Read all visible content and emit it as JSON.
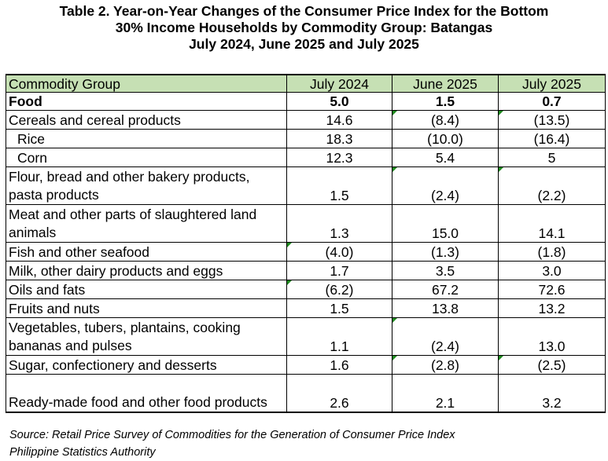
{
  "title": {
    "line1": "Table 2. Year-on-Year Changes of the Consumer Price Index for the Bottom",
    "line2": "30% Income Households by Commodity Group: Batangas",
    "line3": "July 2024, June 2025 and July 2025"
  },
  "table": {
    "headers": [
      "Commodity Group",
      "July 2024",
      "June 2025",
      "July 2025"
    ],
    "rows": [
      {
        "label": "Food",
        "v": [
          "5.0",
          "1.5",
          "0.7"
        ]
      },
      {
        "label": "Cereals and cereal products",
        "v": [
          "14.6",
          "(8.4)",
          "(13.5)"
        ]
      },
      {
        "label": "Rice",
        "v": [
          "18.3",
          "(10.0)",
          "(16.4)"
        ]
      },
      {
        "label": "Corn",
        "v": [
          "12.3",
          "5.4",
          "5"
        ]
      },
      {
        "label": "Flour, bread and other bakery products, pasta products",
        "v": [
          "1.5",
          "(2.4)",
          "(2.2)"
        ]
      },
      {
        "label": "Meat and other parts of slaughtered land animals",
        "v": [
          "1.3",
          "15.0",
          "14.1"
        ]
      },
      {
        "label": "Fish and other seafood",
        "v": [
          "(4.0)",
          "(1.3)",
          "(1.8)"
        ]
      },
      {
        "label": "Milk, other dairy products and eggs",
        "v": [
          "1.7",
          "3.5",
          "3.0"
        ]
      },
      {
        "label": "Oils and fats",
        "v": [
          "(6.2)",
          "67.2",
          "72.6"
        ]
      },
      {
        "label": "Fruits and nuts",
        "v": [
          "1.5",
          "13.8",
          "13.2"
        ]
      },
      {
        "label": "Vegetables, tubers, plantains, cooking bananas and pulses",
        "v": [
          "1.1",
          "(2.4)",
          "13.0"
        ]
      },
      {
        "label": "Sugar, confectionery and desserts",
        "v": [
          "1.6",
          "(2.8)",
          "(2.5)"
        ]
      },
      {
        "label": "Ready-made food and other food products",
        "v": [
          "2.6",
          "2.1",
          "3.2"
        ]
      }
    ]
  },
  "source": {
    "line1": "Source: Retail Price Survey of Commodities for the Generation of Consumer Price Index",
    "line2": "Philippine Statistics Authority"
  },
  "colors": {
    "header_bg": "#c6e0b4",
    "cell_marker": "#1f8a1f"
  }
}
